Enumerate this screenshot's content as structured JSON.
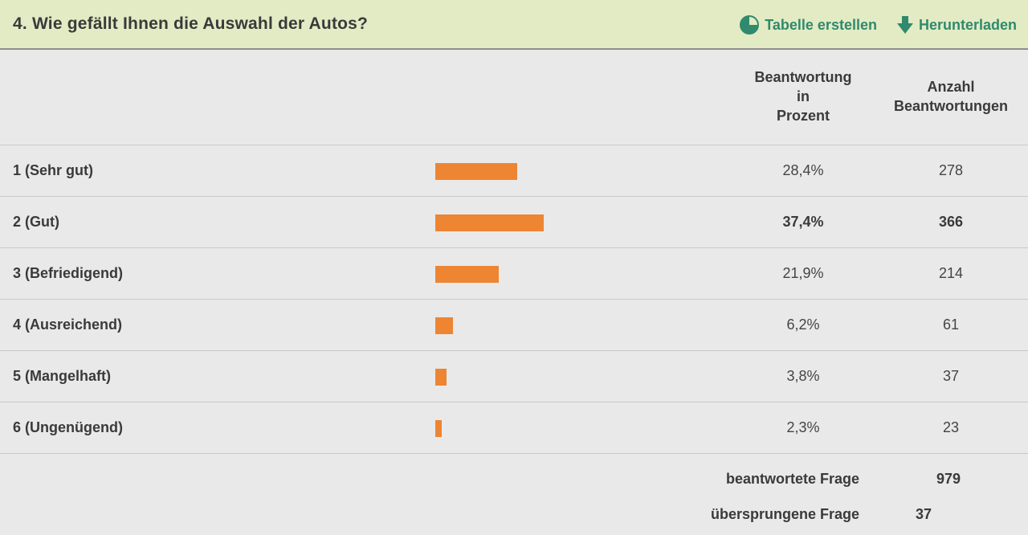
{
  "header": {
    "title": "4. Wie gefällt Ihnen die Auswahl der Autos?",
    "actions": {
      "table_label": "Tabelle erstellen",
      "download_label": "Herunterladen"
    }
  },
  "columns": {
    "percent_lines": [
      "Beantwortung",
      "in",
      "Prozent"
    ],
    "count_lines": [
      "Anzahl",
      "Beantwortungen"
    ]
  },
  "rows": [
    {
      "label": "1 (Sehr gut)",
      "percent": "28,4%",
      "count": "278",
      "share": 0.284
    },
    {
      "label": "2 (Gut)",
      "percent": "37,4%",
      "count": "366",
      "share": 0.374
    },
    {
      "label": "3 (Befriedigend)",
      "percent": "21,9%",
      "count": "214",
      "share": 0.219
    },
    {
      "label": "4 (Ausreichend)",
      "percent": "6,2%",
      "count": "61",
      "share": 0.062
    },
    {
      "label": "5 (Mangelhaft)",
      "percent": "3,8%",
      "count": "37",
      "share": 0.038
    },
    {
      "label": "6 (Ungenügend)",
      "percent": "2,3%",
      "count": "23",
      "share": 0.023
    }
  ],
  "summary": {
    "answered_label": "beantwortete Frage",
    "answered_value": "979",
    "skipped_label": "übersprungene Frage",
    "skipped_value": "37"
  },
  "colors": {
    "header_bg": "#e3ebc4",
    "accent_green": "#2f8a6e",
    "bar_orange": "#ee8532",
    "panel_bg": "#e9e9e9"
  },
  "icons": {
    "table": "pie-chart-icon",
    "download": "download-arrow-icon"
  }
}
